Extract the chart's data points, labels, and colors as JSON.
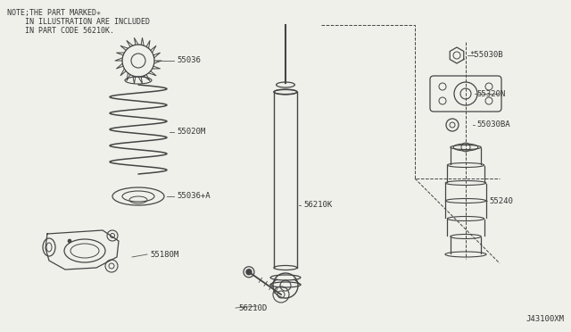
{
  "bg_color": "#f0f0eb",
  "line_color": "#444444",
  "note_text_line1": "NOTE;THE PART MARKED✳",
  "note_text_line2": "    IN ILLUSTRATION ARE INCLUDED",
  "note_text_line3": "    IN PART CODE 56210K.",
  "part_code": "J43100XM",
  "figsize": [
    6.4,
    3.72
  ],
  "dpi": 100
}
